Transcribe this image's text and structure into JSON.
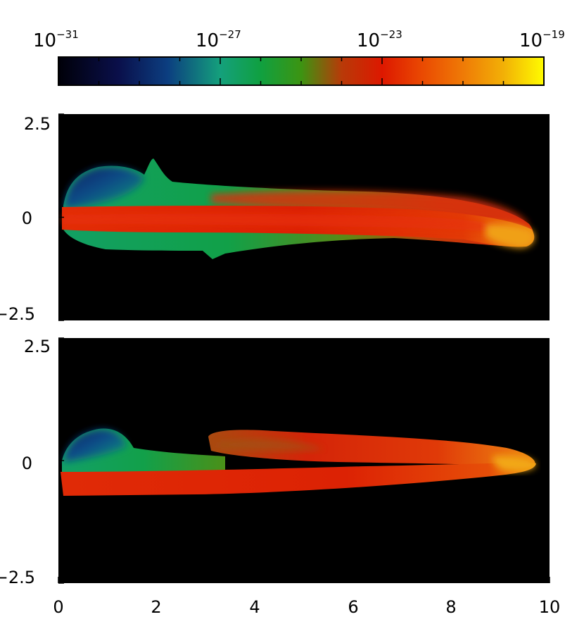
{
  "chart_data": [
    {
      "type": "heatmap",
      "role": "colorbar",
      "scale": "log",
      "range": [
        1e-31,
        1e-19
      ],
      "tick_labels": [
        {
          "base": "10",
          "exponent": "−31"
        },
        {
          "base": "10",
          "exponent": "−27"
        },
        {
          "base": "10",
          "exponent": "−23"
        },
        {
          "base": "10",
          "exponent": "−19"
        }
      ],
      "tick_values": [
        1e-31,
        1e-27,
        1e-23,
        1e-19
      ],
      "colormap": [
        {
          "value": 1e-31,
          "color": "#000008"
        },
        {
          "value": 3e-30,
          "color": "#0a0f4a"
        },
        {
          "value": 5e-29,
          "color": "#0c3e80"
        },
        {
          "value": 1e-27,
          "color": "#14a07c"
        },
        {
          "value": 1e-26,
          "color": "#10a040"
        },
        {
          "value": 1e-25,
          "color": "#3c9412"
        },
        {
          "value": 1e-24,
          "color": "#b83a08"
        },
        {
          "value": 1e-23,
          "color": "#dd1800"
        },
        {
          "value": 1e-22,
          "color": "#ea4a02"
        },
        {
          "value": 1e-21,
          "color": "#ef7a06"
        },
        {
          "value": 1e-20,
          "color": "#f2b006"
        },
        {
          "value": 1e-19,
          "color": "#fffc00"
        }
      ]
    },
    {
      "type": "heatmap",
      "panel": "top",
      "xlim": [
        0,
        10
      ],
      "ylim": [
        -2.5,
        2.5
      ],
      "y_tick_labels": [
        "2.5",
        "0",
        "−2.5"
      ],
      "y_tick_values": [
        2.5,
        0,
        -2.5
      ],
      "background": "#000000"
    },
    {
      "type": "heatmap",
      "panel": "bottom",
      "xlim": [
        0,
        10
      ],
      "ylim": [
        -2.5,
        2.5
      ],
      "y_tick_labels": [
        "2.5",
        "0",
        "−2.5"
      ],
      "y_tick_values": [
        2.5,
        0,
        -2.5
      ],
      "x_tick_labels": [
        "0",
        "2",
        "4",
        "6",
        "8",
        "10"
      ],
      "x_tick_values": [
        0,
        2,
        4,
        6,
        8,
        10
      ],
      "background": "#000000"
    }
  ]
}
